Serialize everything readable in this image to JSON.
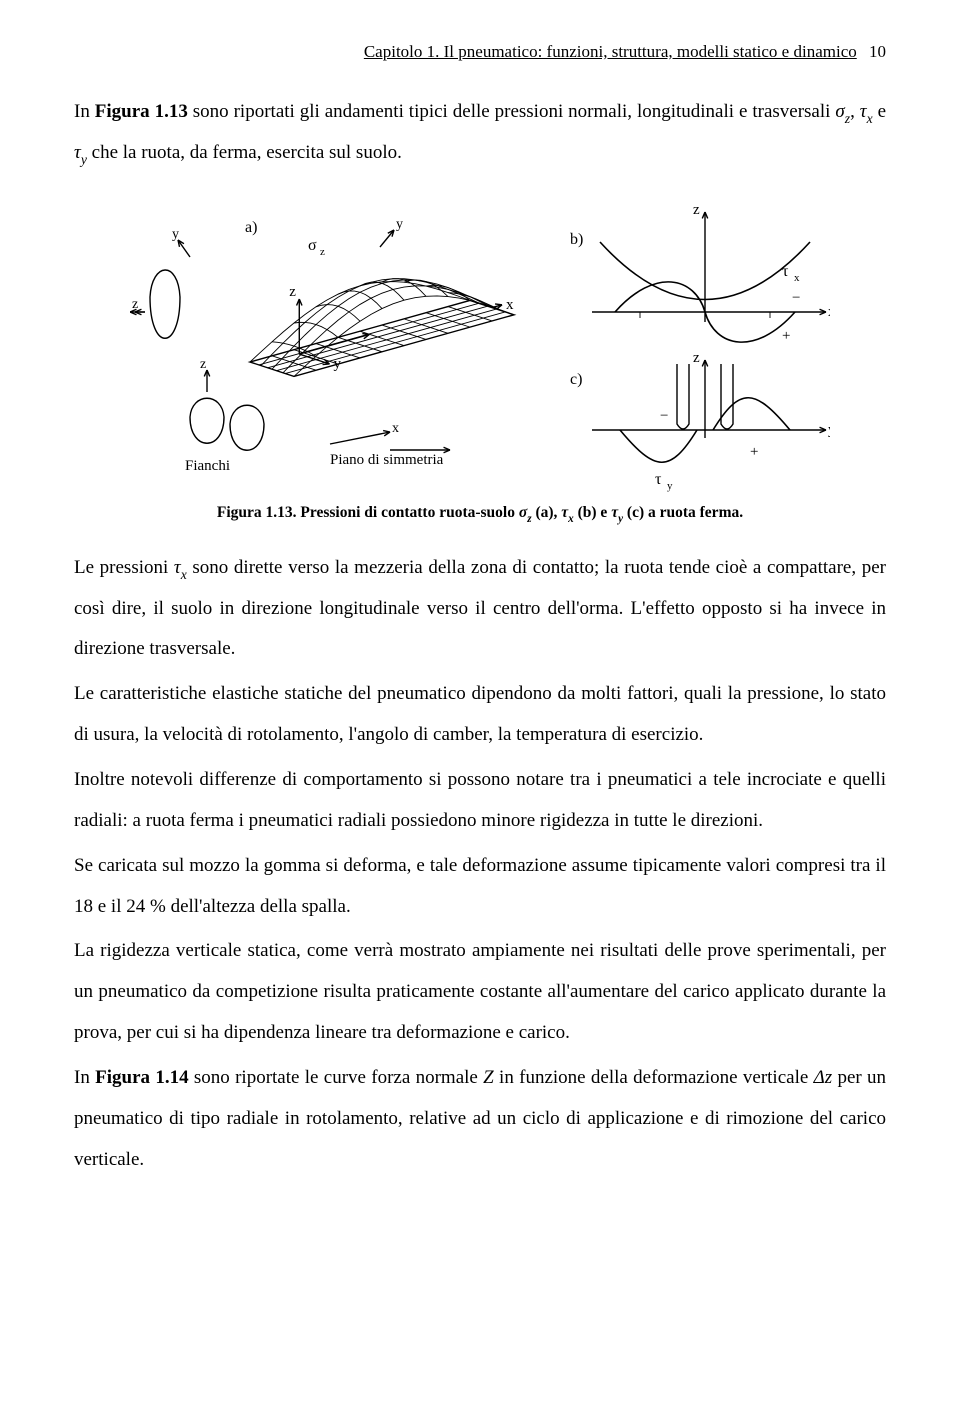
{
  "header": {
    "running_title": "Capitolo 1. Il pneumatico: funzioni, struttura, modelli statico e dinamico",
    "page_number": "10"
  },
  "intro": {
    "prefix": "In ",
    "figref": "Figura 1.13",
    "rest": " sono riportati gli andamenti tipici delle pressioni normali, longitudinali e trasversali ",
    "sigma_z_sym": "σ",
    "sigma_z_sub": "z",
    "comma1": ", ",
    "tau_x_sym": "τ",
    "tau_x_sub": "x",
    "and": " e ",
    "tau_y_sym": "τ",
    "tau_y_sub": "y",
    "tail": " che la ruota, da ferma, esercita sul suolo."
  },
  "figure": {
    "labels": {
      "a": "a)",
      "b": "b)",
      "c": "c)",
      "fianchi": "Fianchi",
      "piano": "Piano di simmetria",
      "x": "x",
      "y": "y",
      "z": "z",
      "sigma_z": "σ",
      "sigma_z_sub": "z",
      "tau_x": "τ",
      "tau_x_sub": "x",
      "tau_y": "τ",
      "tau_y_sub": "y",
      "plus": "+",
      "minus": "−"
    },
    "style": {
      "stroke": "#000000",
      "stroke_width": 1.4,
      "thin_stroke": 0.9,
      "font": "16px serif",
      "small_font": "14px serif",
      "bold_font": "bold 16px serif"
    }
  },
  "caption": {
    "pre": "Figura 1.13. Pressioni di contatto ruota-suolo ",
    "s1": "σ",
    "s1s": "z",
    "p2": " (a), ",
    "s2": "τ",
    "s2s": "x",
    "p3": " (b) e ",
    "s3": "τ",
    "s3s": "y",
    "p4": " (c) a ruota ferma."
  },
  "paras": {
    "p1_a": "Le pressioni ",
    "p1_sym": "τ",
    "p1_sub": "x",
    "p1_b": " sono dirette verso la mezzeria della zona di contatto; la ruota tende cioè a compattare, per così dire, il suolo in direzione longitudinale verso il centro dell'orma. L'effetto opposto si ha invece in direzione trasversale.",
    "p2": "Le caratteristiche elastiche statiche del pneumatico dipendono da molti fattori, quali la pressione, lo stato di usura, la velocità di rotolamento, l'angolo di camber, la temperatura di esercizio.",
    "p3": "Inoltre notevoli differenze di comportamento si possono notare tra i pneumatici a tele incrociate e quelli radiali: a ruota ferma i pneumatici radiali possiedono minore rigidezza in tutte le direzioni.",
    "p4": "Se caricata sul mozzo la gomma si deforma, e tale deformazione assume tipicamente valori compresi tra il 18 e il 24 % dell'altezza della spalla.",
    "p5": "La rigidezza verticale statica, come verrà mostrato ampiamente nei risultati delle prove sperimentali, per un pneumatico da competizione risulta praticamente costante all'aumentare del carico applicato durante la prova, per cui si ha dipendenza lineare tra deformazione e carico.",
    "p6_a": "In ",
    "p6_figref": "Figura 1.14",
    "p6_b": " sono riportate le curve forza normale ",
    "p6_Z": "Z",
    "p6_c": " in funzione della deformazione verticale ",
    "p6_dz": "Δz",
    "p6_d": " per un pneumatico di tipo radiale in rotolamento, relative ad un ciclo di applicazione e di rimozione del carico verticale."
  }
}
